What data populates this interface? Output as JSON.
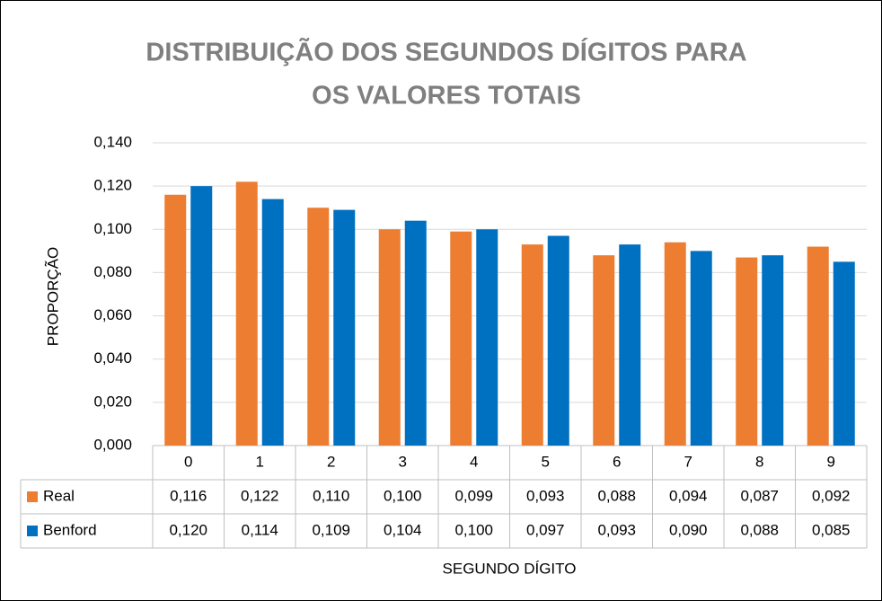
{
  "chart_data": {
    "type": "bar",
    "title": [
      "DISTRIBUIÇÃO DOS SEGUNDOS DÍGITOS PARA",
      "OS VALORES TOTAIS"
    ],
    "x_label": "SEGUNDO DÍGITO",
    "y_label": "PROPORÇÃO",
    "categories": [
      "0",
      "1",
      "2",
      "3",
      "4",
      "5",
      "6",
      "7",
      "8",
      "9"
    ],
    "series": [
      {
        "name": "Real",
        "color": "#ed7d31",
        "values": [
          0.116,
          0.122,
          0.11,
          0.1,
          0.099,
          0.093,
          0.088,
          0.094,
          0.087,
          0.092
        ],
        "value_labels": [
          "0,116",
          "0,122",
          "0,110",
          "0,100",
          "0,099",
          "0,093",
          "0,088",
          "0,094",
          "0,087",
          "0,092"
        ]
      },
      {
        "name": "Benford",
        "color": "#0070c0",
        "values": [
          0.12,
          0.114,
          0.109,
          0.104,
          0.1,
          0.097,
          0.093,
          0.09,
          0.088,
          0.085
        ],
        "value_labels": [
          "0,120",
          "0,114",
          "0,109",
          "0,104",
          "0,100",
          "0,097",
          "0,093",
          "0,090",
          "0,088",
          "0,085"
        ]
      }
    ],
    "ylim": [
      0,
      0.14
    ],
    "yticks": [
      {
        "value": 0,
        "label": "0,000"
      },
      {
        "value": 0.02,
        "label": "0,020"
      },
      {
        "value": 0.04,
        "label": "0,040"
      },
      {
        "value": 0.06,
        "label": "0,060"
      },
      {
        "value": 0.08,
        "label": "0,080"
      },
      {
        "value": 0.1,
        "label": "0,100"
      },
      {
        "value": 0.12,
        "label": "0,120"
      },
      {
        "value": 0.14,
        "label": "0,140"
      }
    ],
    "grid": true
  }
}
